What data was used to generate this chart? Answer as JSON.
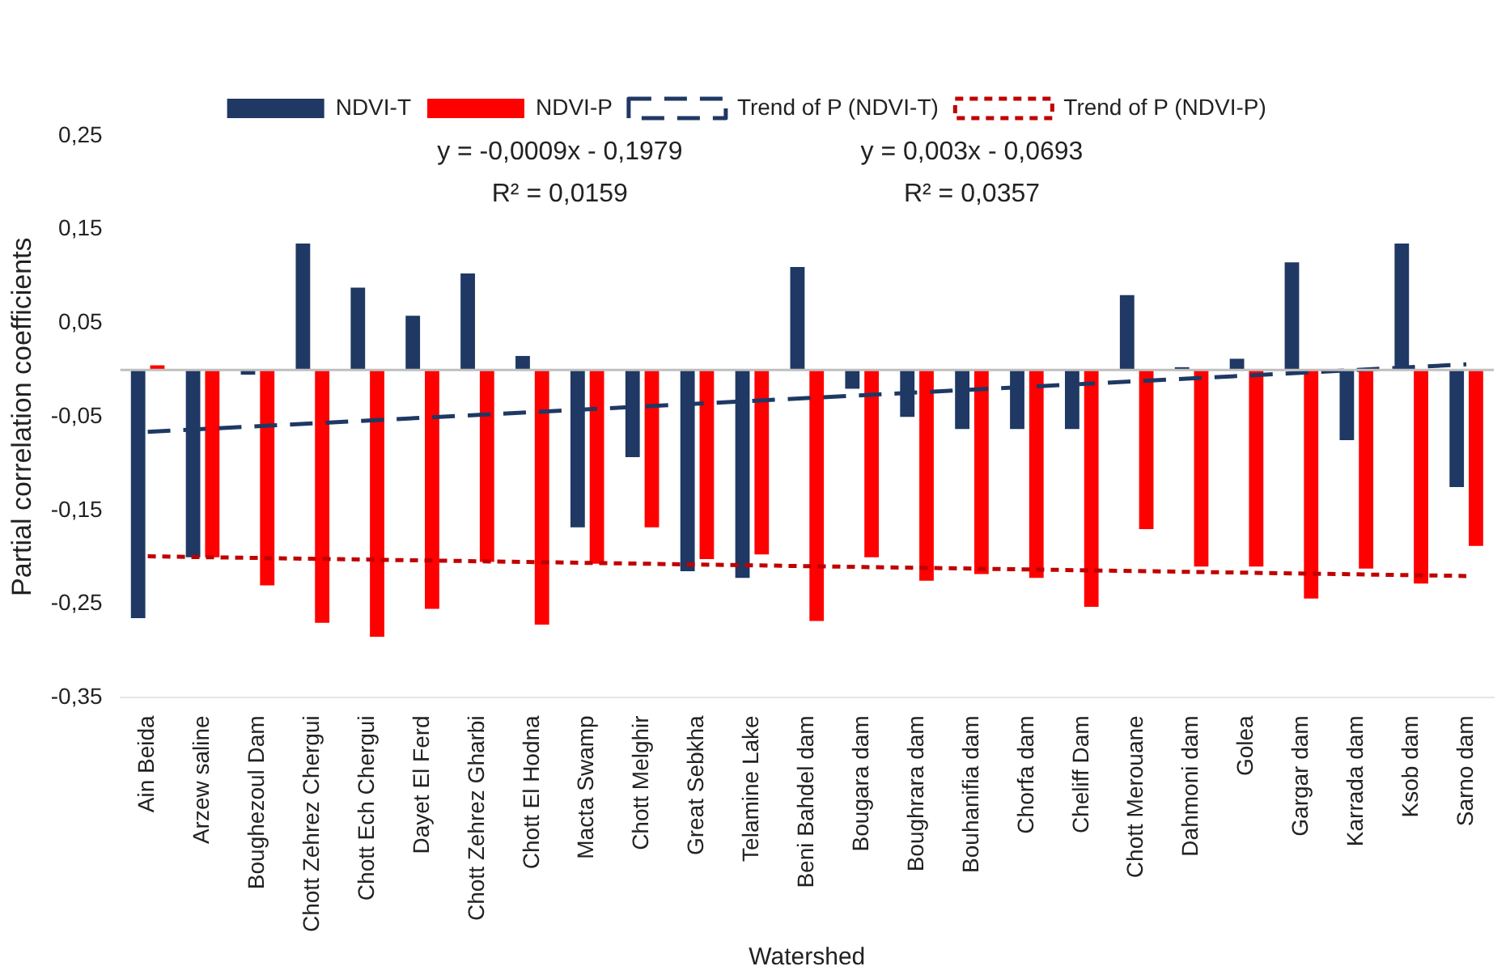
{
  "chart_data": {
    "type": "bar",
    "xlabel": "Watershed",
    "ylabel": "Partial correlation coefficients",
    "categories": [
      "Ain Beida",
      "Arzew saline",
      "Boughezoul Dam",
      "Chott Zehrez Chergui",
      "Chott Ech Chergui",
      "Dayet El Ferd",
      "Chott Zehrez Gharbi",
      "Chott El Hodna",
      "Macta Swamp",
      "Chott Melghir",
      "Great Sebkha",
      "Telamine Lake",
      "Beni Bahdel dam",
      "Bougara dam",
      "Boughrara dam",
      "Bouhanifia dam",
      "Chorfa dam",
      "Cheliff Dam",
      "Chott Merouane",
      "Dahmoni dam",
      "Golea",
      "Gargar dam",
      "Karrada dam",
      "Ksob dam",
      "Sarno dam"
    ],
    "series": [
      {
        "name": "NDVI-T",
        "color": "#1f3864",
        "values": [
          -0.265,
          -0.2,
          -0.005,
          0.135,
          0.088,
          0.058,
          0.103,
          0.015,
          -0.168,
          -0.093,
          -0.215,
          -0.222,
          0.11,
          -0.02,
          -0.05,
          -0.063,
          -0.063,
          -0.063,
          0.08,
          0.003,
          0.012,
          0.115,
          -0.075,
          0.135,
          -0.125
        ]
      },
      {
        "name": "NDVI-P",
        "color": "#ff0000",
        "values": [
          0.005,
          -0.2,
          -0.23,
          -0.27,
          -0.285,
          -0.255,
          -0.205,
          -0.272,
          -0.207,
          -0.168,
          -0.202,
          -0.197,
          -0.268,
          -0.2,
          -0.225,
          -0.218,
          -0.222,
          -0.253,
          -0.17,
          -0.21,
          -0.21,
          -0.244,
          -0.212,
          -0.228,
          -0.188
        ]
      },
      {
        "name": "Trend of P (NDVI-T)",
        "type": "line",
        "line_style": "dashed",
        "color": "#1f3864",
        "x": [
          "Ain Beida",
          "Sarno dam"
        ],
        "values": [
          -0.066,
          0.006
        ]
      },
      {
        "name": "Trend of P (NDVI-P)",
        "type": "line",
        "line_style": "dotted",
        "color": "#c00000",
        "x": [
          "Ain Beida",
          "Sarno dam"
        ],
        "values": [
          -0.199,
          -0.22
        ]
      }
    ],
    "ylim": [
      -0.35,
      0.25
    ],
    "yticks": [
      {
        "value": -0.35,
        "label": "-0,35"
      },
      {
        "value": -0.25,
        "label": "-0,25"
      },
      {
        "value": -0.15,
        "label": "-0,15"
      },
      {
        "value": -0.05,
        "label": "-0,05"
      },
      {
        "value": 0.05,
        "label": "0,05"
      },
      {
        "value": 0.15,
        "label": "0,15"
      },
      {
        "value": 0.25,
        "label": "0,25"
      }
    ],
    "annotations": [
      "y = -0,0009x - 0,1979",
      "R² = 0,0159",
      "y = 0,003x - 0,0693",
      "R² = 0,0357"
    ],
    "legend": "top",
    "grid": false,
    "marker": "none"
  }
}
